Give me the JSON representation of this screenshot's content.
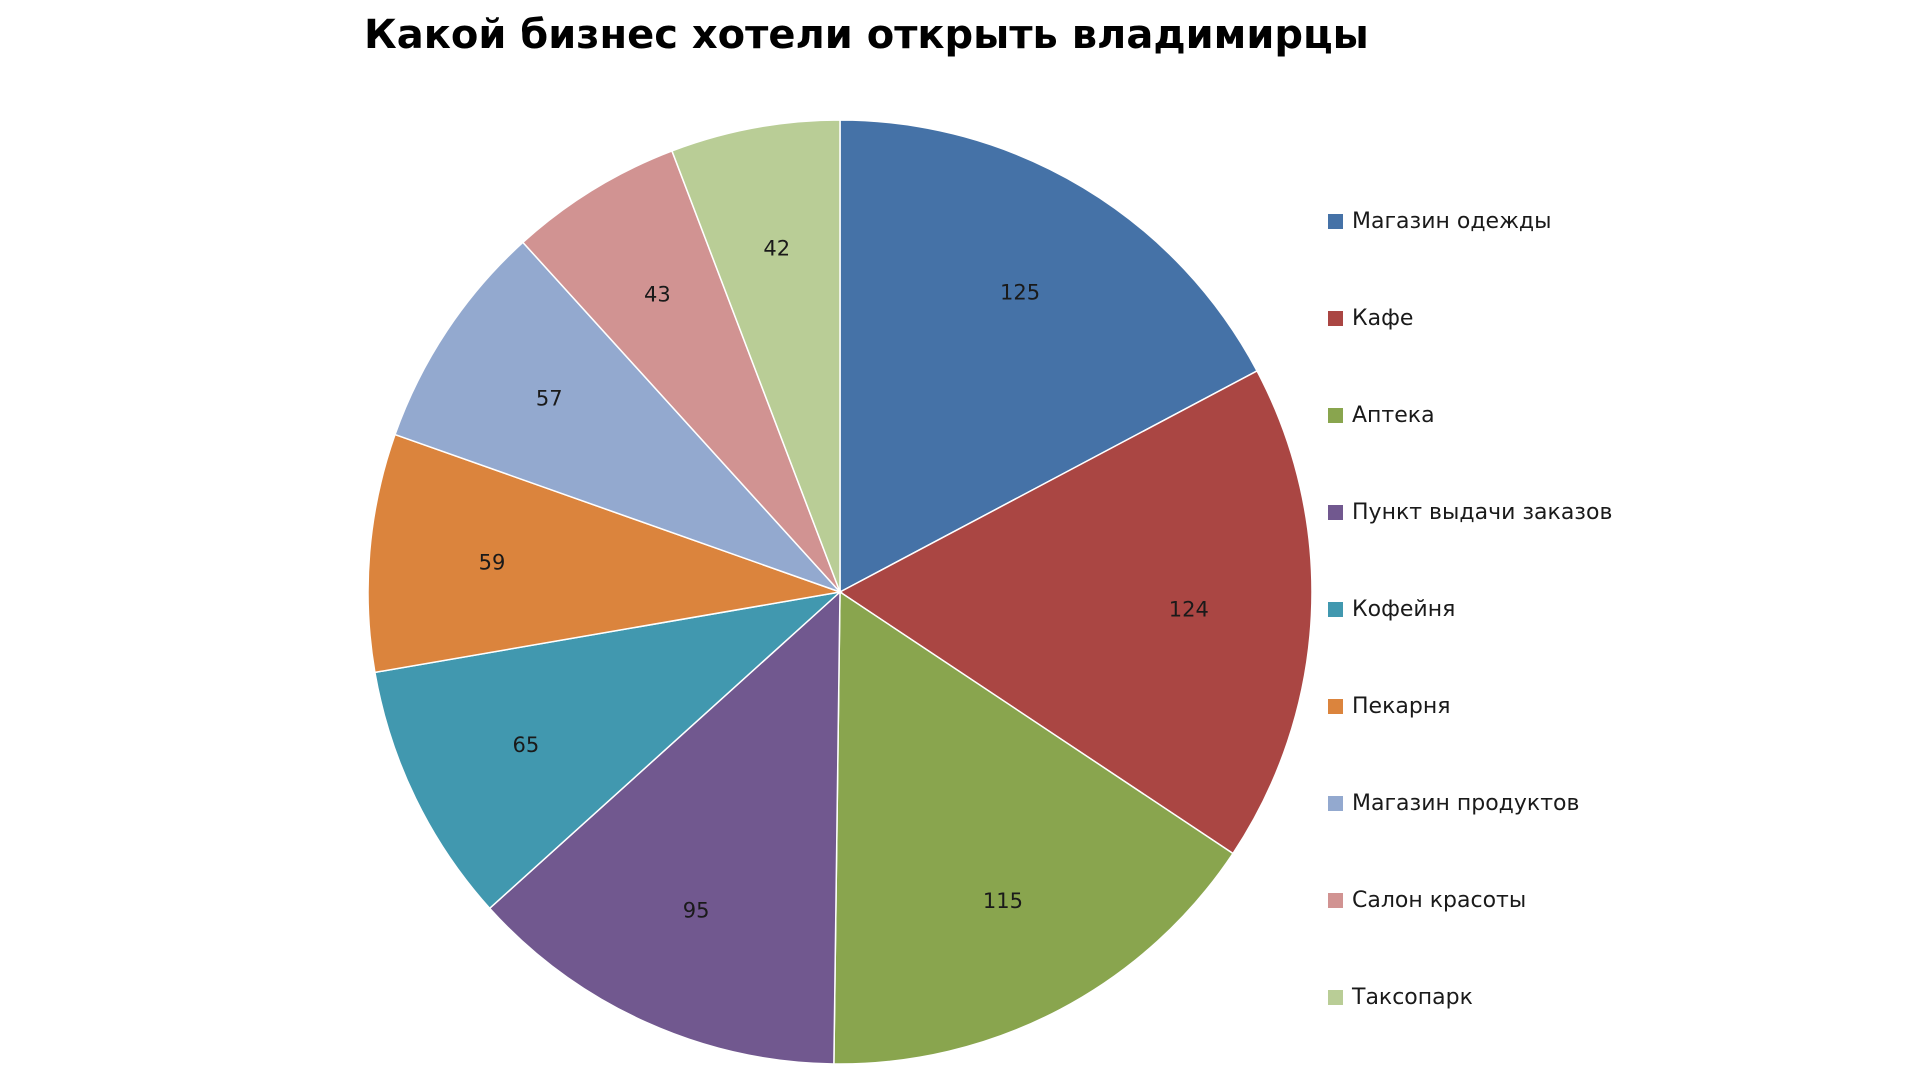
{
  "chart_data": {
    "type": "pie",
    "title": "Какой бизнес хотели открыть владимирцы",
    "legend_position": "right",
    "slices": [
      {
        "label": "Магазин одежды",
        "value": 125,
        "color": "#4572A7"
      },
      {
        "label": "Кафе",
        "value": 124,
        "color": "#AA4643"
      },
      {
        "label": "Аптека",
        "value": 115,
        "color": "#89A54E"
      },
      {
        "label": "Пункт выдачи заказов",
        "value": 95,
        "color": "#71588F"
      },
      {
        "label": "Кофейня",
        "value": 65,
        "color": "#4198AF"
      },
      {
        "label": "Пекарня",
        "value": 59,
        "color": "#DB843D"
      },
      {
        "label": "Магазин продуктов",
        "value": 57,
        "color": "#93A9CF"
      },
      {
        "label": "Салон красоты",
        "value": 43,
        "color": "#D19392"
      },
      {
        "label": "Таксопарк",
        "value": 42,
        "color": "#B9CD96"
      }
    ]
  }
}
